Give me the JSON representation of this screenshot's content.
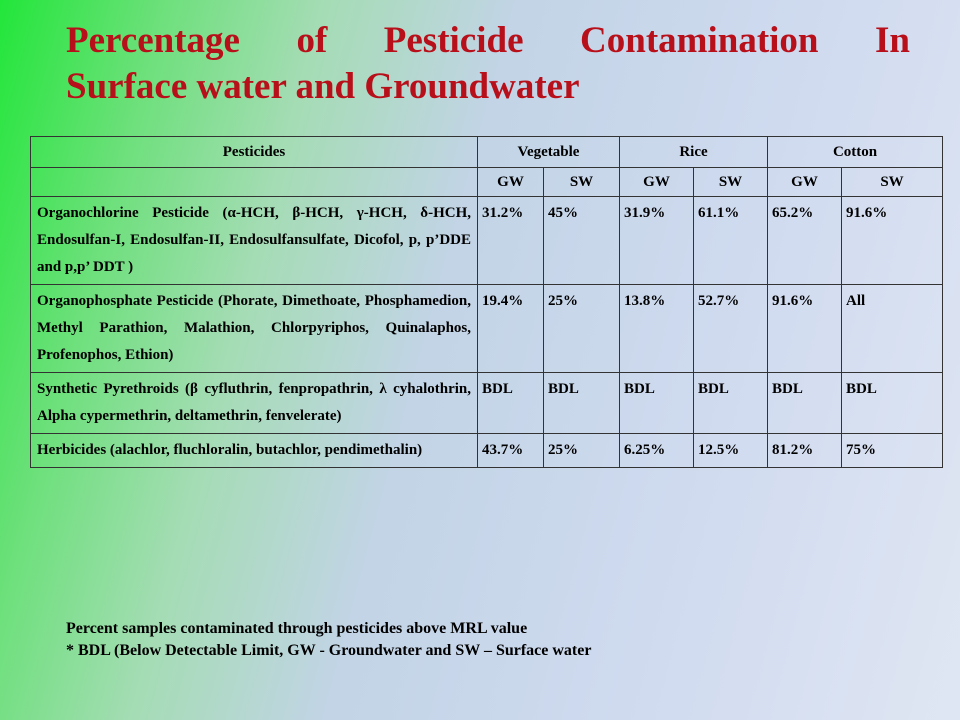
{
  "title": {
    "line1": "Percentage of Pesticide Contamination In",
    "line2": "Surface water and Groundwater"
  },
  "table": {
    "headers": [
      "Pesticides",
      "Vegetable",
      "Rice",
      "Cotton"
    ],
    "subheaders": [
      "",
      "GW",
      "SW",
      "GW",
      "SW",
      "GW",
      "SW"
    ],
    "rows": [
      {
        "name": "Organochlorine Pesticide (α-HCH, β-HCH, γ-HCH, δ-HCH, Endosulfan-I, Endosulfan-II, Endosulfansulfate, Dicofol, p, p’DDE and p,p’ DDT )",
        "values": [
          "31.2%",
          "45%",
          "31.9%",
          "61.1%",
          "65.2%",
          "91.6%"
        ]
      },
      {
        "name": "Organophosphate Pesticide (Phorate, Dimethoate, Phosphamedion, Methyl Parathion, Malathion, Chlorpyriphos, Quinalaphos, Profenophos, Ethion)",
        "values": [
          "19.4%",
          "25%",
          "13.8%",
          "52.7%",
          "91.6%",
          "All"
        ]
      },
      {
        "name": "Synthetic Pyrethroids (β cyfluthrin, fenpropathrin, λ cyhalothrin, Alpha cypermethrin, deltamethrin, fenvelerate)",
        "values": [
          "BDL",
          "BDL",
          "BDL",
          "BDL",
          "BDL",
          "BDL"
        ]
      },
      {
        "name": "Herbicides (alachlor, fluchloralin, butachlor, pendimethalin)",
        "values": [
          "43.7%",
          "25%",
          "6.25%",
          "12.5%",
          "81.2%",
          "75%"
        ]
      }
    ]
  },
  "notes": {
    "line1": "Percent samples contaminated through pesticides above MRL value",
    "line2": "* BDL (Below Detectable Limit, GW - Groundwater and SW – Surface water"
  }
}
